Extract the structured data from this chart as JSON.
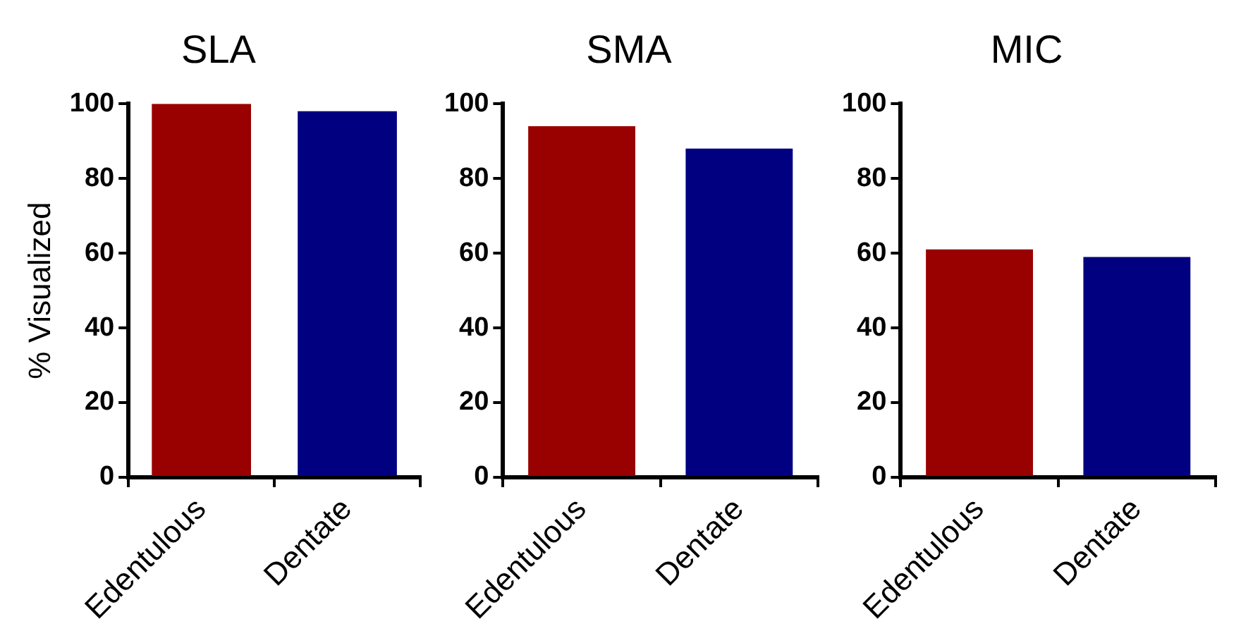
{
  "chart_data": [
    {
      "type": "bar",
      "title": "SLA",
      "ylabel": "% Visualized",
      "categories": [
        "Edentulous",
        "Dentate"
      ],
      "values": [
        100,
        98
      ],
      "colors": [
        "#990000",
        "#000080"
      ],
      "ylim": [
        0,
        100
      ],
      "yticks": [
        0,
        20,
        40,
        60,
        80,
        100
      ],
      "grid": false
    },
    {
      "type": "bar",
      "title": "SMA",
      "categories": [
        "Edentulous",
        "Dentate"
      ],
      "values": [
        94,
        88
      ],
      "colors": [
        "#990000",
        "#000080"
      ],
      "ylim": [
        0,
        100
      ],
      "yticks": [
        0,
        20,
        40,
        60,
        80,
        100
      ],
      "grid": false
    },
    {
      "type": "bar",
      "title": "MIC",
      "categories": [
        "Edentulous",
        "Dentate"
      ],
      "values": [
        61,
        59
      ],
      "colors": [
        "#990000",
        "#000080"
      ],
      "ylim": [
        0,
        100
      ],
      "yticks": [
        0,
        20,
        40,
        60,
        80,
        100
      ],
      "grid": false
    }
  ]
}
